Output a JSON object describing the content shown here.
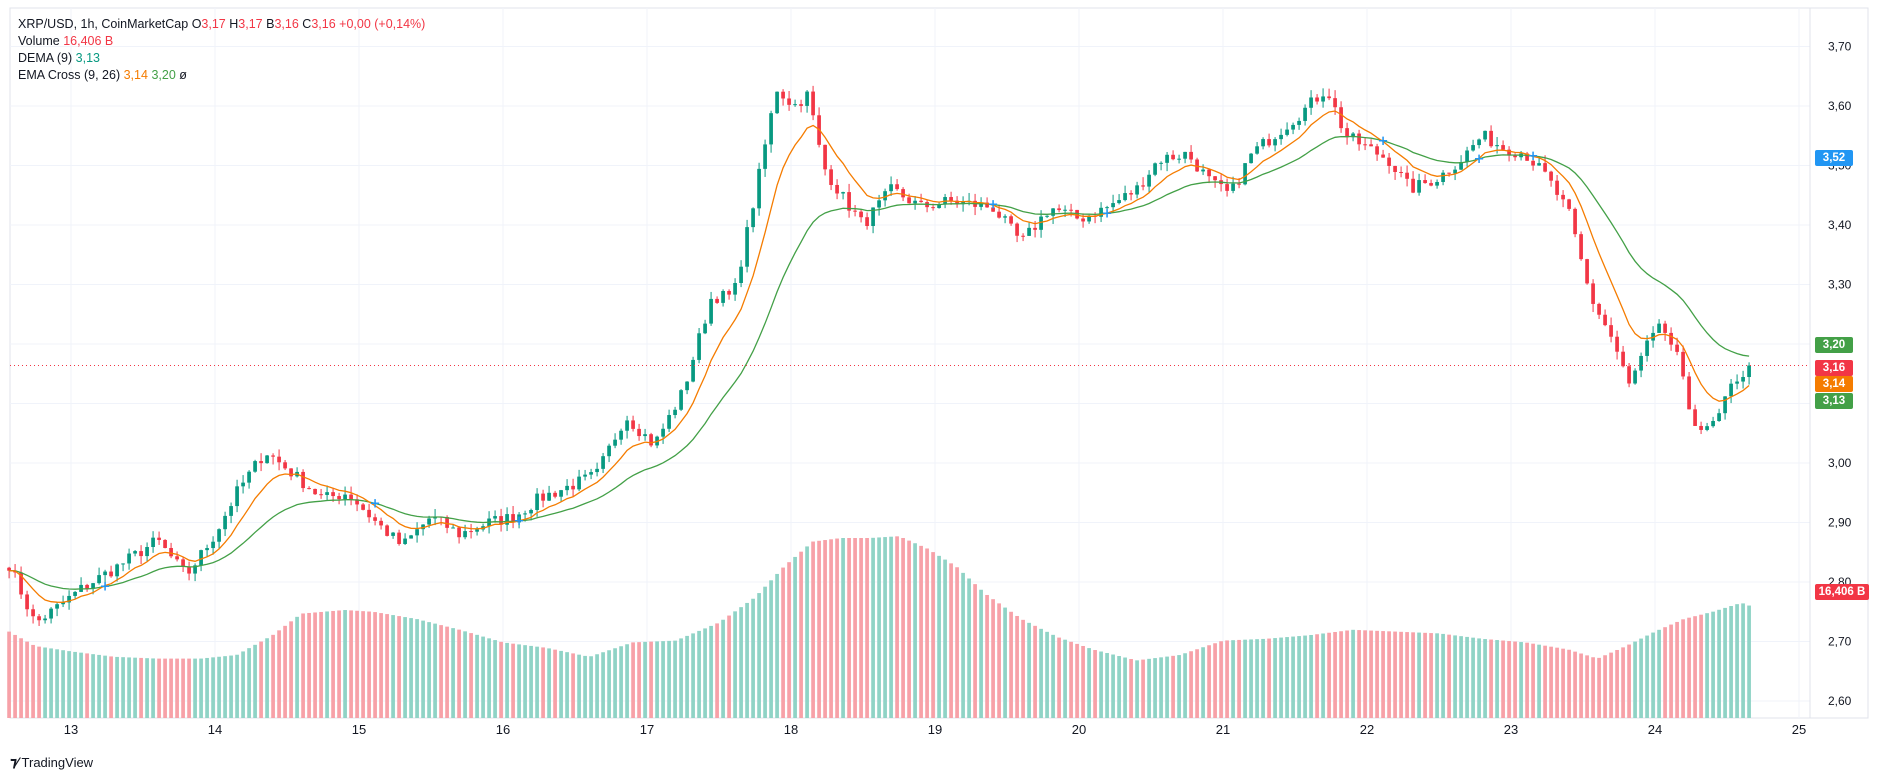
{
  "legend": {
    "symbol": "XRP/USD, 1h, CoinMarketCap",
    "o_label": "O",
    "o_val": "3,17",
    "h_label": "H",
    "h_val": "3,17",
    "l_label": "B",
    "l_val": "3,16",
    "c_label": "C",
    "c_val": "3,16",
    "change": "+0,00 (+0,14%)",
    "volume_label": "Volume",
    "volume_val": "16,406 B",
    "dema_label": "DEMA (9)",
    "dema_val": "3,13",
    "ema_label": "EMA Cross (9, 26)",
    "ema_fast": "3,14",
    "ema_slow": "3,20",
    "ema_extra": "ø"
  },
  "badges": {
    "crosshair": "3,52",
    "ema_slow": "3,20",
    "price": "3,16",
    "ema_fast": "3,14",
    "dema": "3,13",
    "volume": "16,406 B"
  },
  "branding": "TradingView",
  "colors": {
    "up": "#089981",
    "down": "#f23645",
    "vol_up": "#8fd3c6",
    "vol_down": "#f7a1a8",
    "ema_fast": "#f57c00",
    "ema_slow": "#43a047",
    "crosshair_badge": "#2962ff",
    "green_badge": "#43a047",
    "orange_badge": "#f57c00",
    "red_badge": "#f23645"
  },
  "chart_data": {
    "type": "candlestick",
    "title": "XRP/USD, 1h, CoinMarketCap",
    "ylim": [
      2.56,
      3.74
    ],
    "y_ticks": [
      "2,60",
      "2,70",
      "2,80",
      "2,90",
      "3,00",
      "3,10",
      "3,20",
      "3,30",
      "3,40",
      "3,50",
      "3,60",
      "3,70"
    ],
    "y_tick_values": [
      2.6,
      2.7,
      2.8,
      2.9,
      3.0,
      3.1,
      3.2,
      3.3,
      3.4,
      3.5,
      3.6,
      3.7
    ],
    "x_ticks": [
      "13",
      "14",
      "15",
      "16",
      "17",
      "18",
      "19",
      "20",
      "21",
      "22",
      "23",
      "24",
      "25"
    ],
    "x_tick_days": [
      13,
      14,
      15,
      16,
      17,
      18,
      19,
      20,
      21,
      22,
      23,
      24,
      25
    ],
    "x_start_day": 12.57,
    "x_end_day": 25.55,
    "close_anchors": {
      "days": [
        12.57,
        12.75,
        12.92,
        13.08,
        13.35,
        13.6,
        13.8,
        14.0,
        14.15,
        14.35,
        14.55,
        14.75,
        14.92,
        15.12,
        15.3,
        15.5,
        15.7,
        15.9,
        16.08,
        16.25,
        16.45,
        16.65,
        16.85,
        17.05,
        17.25,
        17.45,
        17.6,
        17.75,
        17.9,
        18.02,
        18.12,
        18.22,
        18.35,
        18.5,
        18.7,
        18.9,
        19.1,
        19.4,
        19.6,
        19.8,
        20.0,
        20.2,
        20.4,
        20.55,
        20.75,
        20.92,
        21.05,
        21.2,
        21.4,
        21.55,
        21.72,
        21.85,
        22.0,
        22.15,
        22.3,
        22.5,
        22.65,
        22.8,
        22.95,
        23.1,
        23.25,
        23.4,
        23.55,
        23.7,
        23.82,
        23.95,
        24.05,
        24.15,
        24.25,
        24.35,
        24.45,
        24.55,
        24.67
      ],
      "closes": [
        2.83,
        2.73,
        2.76,
        2.79,
        2.83,
        2.87,
        2.81,
        2.88,
        2.95,
        3.02,
        2.98,
        2.94,
        2.95,
        2.9,
        2.86,
        2.91,
        2.88,
        2.9,
        2.91,
        2.94,
        2.96,
        2.98,
        3.08,
        3.03,
        3.12,
        3.28,
        3.28,
        3.45,
        3.63,
        3.6,
        3.62,
        3.5,
        3.45,
        3.4,
        3.46,
        3.43,
        3.44,
        3.43,
        3.37,
        3.43,
        3.41,
        3.43,
        3.46,
        3.51,
        3.52,
        3.47,
        3.45,
        3.52,
        3.56,
        3.59,
        3.63,
        3.55,
        3.53,
        3.51,
        3.46,
        3.48,
        3.51,
        3.55,
        3.53,
        3.52,
        3.48,
        3.42,
        3.28,
        3.21,
        3.13,
        3.2,
        3.23,
        3.18,
        3.08,
        3.05,
        3.08,
        3.14,
        3.16
      ]
    },
    "volume_anchors": {
      "days": [
        12.57,
        12.75,
        13.0,
        13.3,
        13.6,
        13.9,
        14.15,
        14.4,
        14.6,
        14.9,
        15.1,
        15.4,
        15.7,
        16.0,
        16.3,
        16.6,
        16.9,
        17.2,
        17.5,
        17.75,
        17.95,
        18.15,
        18.35,
        18.55,
        18.75,
        18.95,
        19.15,
        19.35,
        19.6,
        19.85,
        20.1,
        20.4,
        20.7,
        21.0,
        21.3,
        21.6,
        21.9,
        22.2,
        22.5,
        22.8,
        23.1,
        23.4,
        23.6,
        23.8,
        24.0,
        24.2,
        24.4,
        24.6,
        24.67
      ],
      "heights": [
        0.48,
        0.4,
        0.37,
        0.34,
        0.33,
        0.33,
        0.35,
        0.46,
        0.58,
        0.6,
        0.59,
        0.55,
        0.49,
        0.42,
        0.39,
        0.34,
        0.42,
        0.43,
        0.53,
        0.67,
        0.84,
        0.98,
        1.0,
        1.0,
        1.01,
        0.94,
        0.84,
        0.69,
        0.55,
        0.45,
        0.38,
        0.32,
        0.35,
        0.43,
        0.44,
        0.46,
        0.49,
        0.48,
        0.47,
        0.44,
        0.42,
        0.38,
        0.33,
        0.4,
        0.48,
        0.55,
        0.59,
        0.64,
        0.62
      ]
    }
  }
}
